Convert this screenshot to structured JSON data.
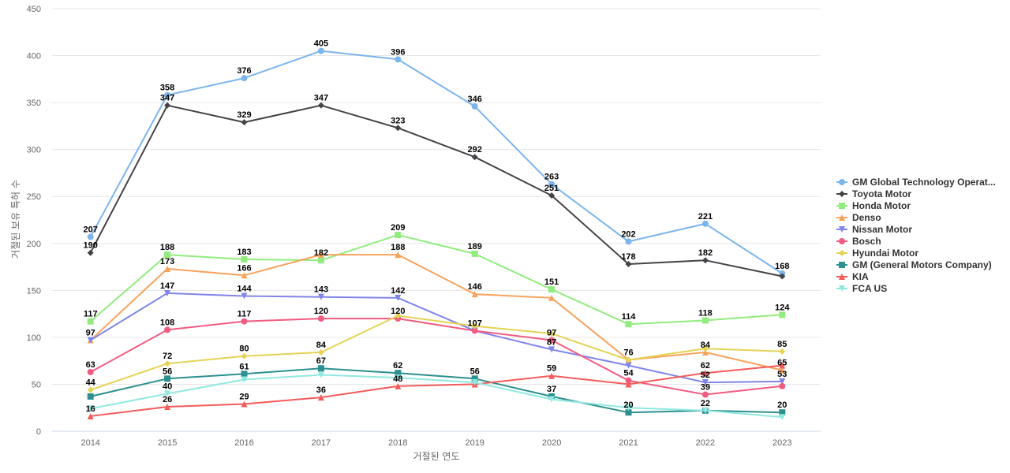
{
  "chart_data": {
    "type": "line",
    "title": "",
    "xlabel": "거절된 연도",
    "ylabel": "거절된 보유 특허 수",
    "x": [
      2014,
      2015,
      2016,
      2017,
      2018,
      2019,
      2020,
      2021,
      2022,
      2023
    ],
    "yticks": [
      0,
      50,
      100,
      150,
      200,
      250,
      300,
      350,
      400,
      450
    ],
    "ylim": [
      0,
      450
    ],
    "grid": true,
    "legend_position": "right",
    "series": [
      {
        "name": "GM Global Technology Operat...",
        "color": "#7cb5ec",
        "marker": "circle",
        "values": [
          207,
          358,
          376,
          405,
          396,
          346,
          263,
          202,
          221,
          168
        ]
      },
      {
        "name": "Toyota Motor",
        "color": "#434348",
        "marker": "diamond",
        "values": [
          190,
          347,
          329,
          347,
          323,
          292,
          251,
          178,
          182,
          165
        ]
      },
      {
        "name": "Honda Motor",
        "color": "#90ed7d",
        "marker": "square",
        "values": [
          117,
          188,
          183,
          182,
          209,
          189,
          151,
          114,
          118,
          124
        ]
      },
      {
        "name": "Denso",
        "color": "#f7a35c",
        "marker": "triangle",
        "values": [
          97,
          173,
          166,
          188,
          188,
          146,
          142,
          76,
          84,
          65
        ]
      },
      {
        "name": "Nissan Motor",
        "color": "#8085e9",
        "marker": "triangle-down",
        "values": [
          97,
          147,
          144,
          143,
          142,
          107,
          87,
          70,
          52,
          53
        ]
      },
      {
        "name": "Bosch",
        "color": "#f15c80",
        "marker": "circle",
        "values": [
          63,
          108,
          117,
          120,
          120,
          107,
          97,
          54,
          39,
          48
        ]
      },
      {
        "name": "Hyundai Motor",
        "color": "#e4d354",
        "marker": "diamond",
        "values": [
          44,
          72,
          80,
          84,
          123,
          112,
          104,
          76,
          88,
          85
        ]
      },
      {
        "name": "GM (General Motors Company)",
        "color": "#2b908f",
        "marker": "square",
        "values": [
          37,
          56,
          61,
          67,
          62,
          56,
          37,
          20,
          22,
          20
        ]
      },
      {
        "name": "KIA",
        "color": "#f45b5b",
        "marker": "triangle",
        "values": [
          16,
          26,
          29,
          36,
          48,
          50,
          59,
          50,
          62,
          70
        ]
      },
      {
        "name": "FCA US",
        "color": "#91e8e1",
        "marker": "triangle-down",
        "values": [
          24,
          40,
          55,
          60,
          57,
          52,
          34,
          25,
          22,
          15
        ]
      }
    ],
    "data_labels": [
      {
        "x": 2014,
        "y": 207,
        "text": "207"
      },
      {
        "x": 2014,
        "y": 190,
        "text": "190"
      },
      {
        "x": 2014,
        "y": 117,
        "text": "117"
      },
      {
        "x": 2014,
        "y": 97,
        "text": "97"
      },
      {
        "x": 2014,
        "y": 63,
        "text": "63"
      },
      {
        "x": 2014,
        "y": 44,
        "text": "44"
      },
      {
        "x": 2014,
        "y": 16,
        "text": "16"
      },
      {
        "x": 2015,
        "y": 358,
        "text": "358"
      },
      {
        "x": 2015,
        "y": 347,
        "text": "347"
      },
      {
        "x": 2015,
        "y": 188,
        "text": "188"
      },
      {
        "x": 2015,
        "y": 173,
        "text": "173"
      },
      {
        "x": 2015,
        "y": 147,
        "text": "147"
      },
      {
        "x": 2015,
        "y": 108,
        "text": "108"
      },
      {
        "x": 2015,
        "y": 72,
        "text": "72"
      },
      {
        "x": 2015,
        "y": 56,
        "text": "56"
      },
      {
        "x": 2015,
        "y": 40,
        "text": "40"
      },
      {
        "x": 2015,
        "y": 26,
        "text": "26"
      },
      {
        "x": 2016,
        "y": 376,
        "text": "376"
      },
      {
        "x": 2016,
        "y": 329,
        "text": "329"
      },
      {
        "x": 2016,
        "y": 183,
        "text": "183"
      },
      {
        "x": 2016,
        "y": 166,
        "text": "166"
      },
      {
        "x": 2016,
        "y": 144,
        "text": "144"
      },
      {
        "x": 2016,
        "y": 117,
        "text": "117"
      },
      {
        "x": 2016,
        "y": 80,
        "text": "80"
      },
      {
        "x": 2016,
        "y": 61,
        "text": "61"
      },
      {
        "x": 2016,
        "y": 29,
        "text": "29"
      },
      {
        "x": 2017,
        "y": 405,
        "text": "405"
      },
      {
        "x": 2017,
        "y": 347,
        "text": "347"
      },
      {
        "x": 2017,
        "y": 182,
        "text": "182"
      },
      {
        "x": 2017,
        "y": 143,
        "text": "143"
      },
      {
        "x": 2017,
        "y": 120,
        "text": "120"
      },
      {
        "x": 2017,
        "y": 84,
        "text": "84"
      },
      {
        "x": 2017,
        "y": 67,
        "text": "67"
      },
      {
        "x": 2017,
        "y": 36,
        "text": "36"
      },
      {
        "x": 2018,
        "y": 396,
        "text": "396"
      },
      {
        "x": 2018,
        "y": 323,
        "text": "323"
      },
      {
        "x": 2018,
        "y": 209,
        "text": "209"
      },
      {
        "x": 2018,
        "y": 188,
        "text": "188"
      },
      {
        "x": 2018,
        "y": 142,
        "text": "142"
      },
      {
        "x": 2018,
        "y": 120,
        "text": "120"
      },
      {
        "x": 2018,
        "y": 62,
        "text": "62"
      },
      {
        "x": 2018,
        "y": 48,
        "text": "48"
      },
      {
        "x": 2019,
        "y": 346,
        "text": "346"
      },
      {
        "x": 2019,
        "y": 292,
        "text": "292"
      },
      {
        "x": 2019,
        "y": 189,
        "text": "189"
      },
      {
        "x": 2019,
        "y": 146,
        "text": "146"
      },
      {
        "x": 2019,
        "y": 107,
        "text": "107"
      },
      {
        "x": 2019,
        "y": 56,
        "text": "56"
      },
      {
        "x": 2020,
        "y": 263,
        "text": "263"
      },
      {
        "x": 2020,
        "y": 251,
        "text": "251"
      },
      {
        "x": 2020,
        "y": 151,
        "text": "151"
      },
      {
        "x": 2020,
        "y": 97,
        "text": "97"
      },
      {
        "x": 2020,
        "y": 87,
        "text": "87"
      },
      {
        "x": 2020,
        "y": 59,
        "text": "59"
      },
      {
        "x": 2020,
        "y": 37,
        "text": "37"
      },
      {
        "x": 2021,
        "y": 202,
        "text": "202"
      },
      {
        "x": 2021,
        "y": 178,
        "text": "178"
      },
      {
        "x": 2021,
        "y": 114,
        "text": "114"
      },
      {
        "x": 2021,
        "y": 76,
        "text": "76"
      },
      {
        "x": 2021,
        "y": 54,
        "text": "54"
      },
      {
        "x": 2021,
        "y": 20,
        "text": "20"
      },
      {
        "x": 2022,
        "y": 221,
        "text": "221"
      },
      {
        "x": 2022,
        "y": 182,
        "text": "182"
      },
      {
        "x": 2022,
        "y": 118,
        "text": "118"
      },
      {
        "x": 2022,
        "y": 84,
        "text": "84"
      },
      {
        "x": 2022,
        "y": 62,
        "text": "62"
      },
      {
        "x": 2022,
        "y": 52,
        "text": "52"
      },
      {
        "x": 2022,
        "y": 39,
        "text": "39"
      },
      {
        "x": 2022,
        "y": 22,
        "text": "22"
      },
      {
        "x": 2023,
        "y": 168,
        "text": "168"
      },
      {
        "x": 2023,
        "y": 124,
        "text": "124"
      },
      {
        "x": 2023,
        "y": 85,
        "text": "85"
      },
      {
        "x": 2023,
        "y": 65,
        "text": "65"
      },
      {
        "x": 2023,
        "y": 53,
        "text": "53"
      },
      {
        "x": 2023,
        "y": 20,
        "text": "20"
      }
    ]
  }
}
